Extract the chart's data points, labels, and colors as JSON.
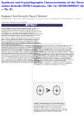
{
  "bg_color": "#ffffff",
  "text_color": "#000000",
  "title_color": "#1a1aee",
  "header_bg": "#3a3a6a",
  "abstract_bg": "#3a3a6a",
  "title": "Synthesis and Crystallographic Characterization of the Tetra-\nvalent Actinide-DOTA Complexes, [Anᴵᴷ(κ⁸-DOTA)(DMSO)] (An\n= Th, U)",
  "authors": "Dongbang Y, Borch Boning Sho T-Amos J P, Almojhar*",
  "affiliation": "Department of Chemistry and Biochemistry, University of California Barbara, Santa Barbara, CA 93106",
  "received": "Received February: as submitted",
  "abstract_label": "ABSTRACT"
}
